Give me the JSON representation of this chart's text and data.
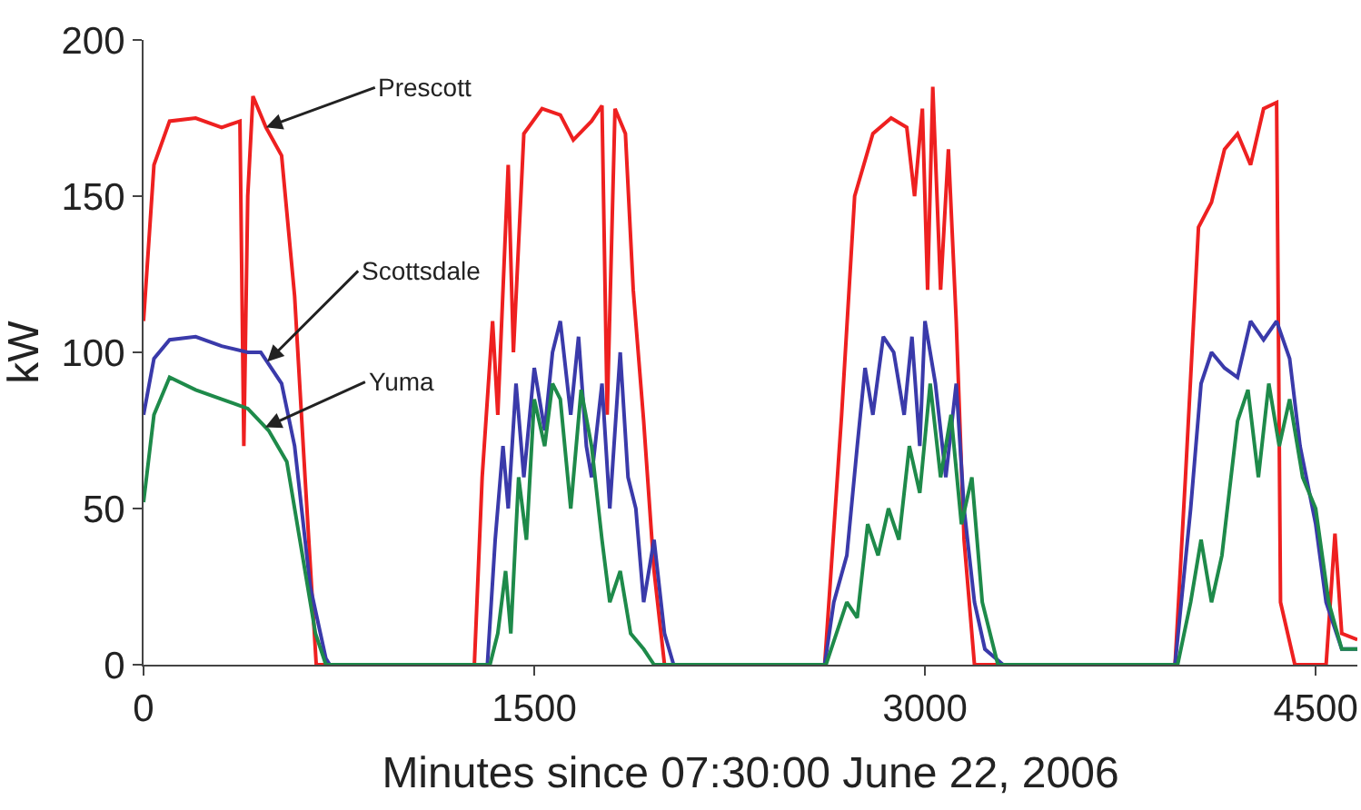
{
  "chart_data": {
    "type": "line",
    "xlabel": "Minutes since 07:30:00 June 22, 2006",
    "ylabel": "kW",
    "xlim": [
      0,
      4660
    ],
    "ylim": [
      0,
      200
    ],
    "xticks": [
      0,
      1500,
      3000,
      4500
    ],
    "yticks": [
      0,
      50,
      100,
      150,
      200
    ],
    "marker": "none",
    "line_style": "solid",
    "series": [
      {
        "color": "#ee2020",
        "x": [
          0,
          40,
          100,
          200,
          300,
          370,
          385,
          400,
          420,
          470,
          530,
          580,
          620,
          663,
          1270,
          1300,
          1340,
          1360,
          1400,
          1420,
          1460,
          1530,
          1600,
          1650,
          1720,
          1760,
          1780,
          1810,
          1850,
          1880,
          1920,
          1960,
          2000,
          2615,
          2680,
          2730,
          2800,
          2870,
          2930,
          2960,
          2990,
          3010,
          3030,
          3060,
          3090,
          3120,
          3150,
          3190,
          3960,
          4000,
          4050,
          4100,
          4150,
          4200,
          4250,
          4300,
          4350,
          4365,
          4420,
          4540,
          4574,
          4600,
          4660
        ],
        "values": [
          110,
          160,
          174,
          175,
          172,
          174,
          70,
          150,
          182,
          172,
          163,
          118,
          60,
          0,
          0,
          60,
          110,
          80,
          160,
          100,
          170,
          178,
          176,
          168,
          174,
          179,
          80,
          178,
          170,
          120,
          78,
          30,
          0,
          0,
          80,
          150,
          170,
          175,
          172,
          150,
          178,
          120,
          185,
          120,
          165,
          110,
          40,
          0,
          0,
          60,
          140,
          148,
          165,
          170,
          160,
          178,
          180,
          20,
          0,
          0,
          42,
          10,
          8
        ]
      },
      {
        "color": "#3a3aaa",
        "x": [
          0,
          40,
          100,
          200,
          300,
          400,
          450,
          530,
          580,
          640,
          700,
          715,
          1320,
          1350,
          1380,
          1400,
          1430,
          1460,
          1500,
          1540,
          1570,
          1600,
          1640,
          1670,
          1700,
          1720,
          1760,
          1790,
          1830,
          1860,
          1890,
          1920,
          1960,
          2000,
          2035,
          2615,
          2650,
          2700,
          2740,
          2770,
          2800,
          2840,
          2880,
          2920,
          2950,
          2980,
          3000,
          3040,
          3080,
          3120,
          3150,
          3190,
          3230,
          3300,
          3960,
          4020,
          4060,
          4100,
          4150,
          4200,
          4250,
          4300,
          4350,
          4400,
          4440,
          4500,
          4540,
          4600,
          4660
        ],
        "values": [
          80,
          98,
          104,
          105,
          102,
          100,
          100,
          90,
          70,
          25,
          2,
          0,
          0,
          40,
          70,
          50,
          90,
          60,
          95,
          75,
          100,
          110,
          80,
          105,
          70,
          60,
          90,
          50,
          100,
          60,
          50,
          20,
          40,
          10,
          0,
          0,
          20,
          35,
          70,
          95,
          80,
          105,
          100,
          80,
          105,
          70,
          110,
          90,
          60,
          90,
          50,
          20,
          5,
          0,
          0,
          50,
          90,
          100,
          95,
          92,
          110,
          104,
          110,
          98,
          70,
          45,
          20,
          5,
          5
        ]
      },
      {
        "color": "#1e8a4a",
        "x": [
          0,
          40,
          100,
          200,
          300,
          400,
          480,
          550,
          600,
          660,
          700,
          1330,
          1360,
          1390,
          1410,
          1440,
          1470,
          1500,
          1540,
          1570,
          1600,
          1640,
          1680,
          1720,
          1760,
          1790,
          1830,
          1870,
          1920,
          1960,
          2620,
          2660,
          2700,
          2740,
          2780,
          2820,
          2860,
          2900,
          2940,
          2980,
          3020,
          3060,
          3100,
          3140,
          3180,
          3220,
          3280,
          3970,
          4020,
          4060,
          4100,
          4140,
          4200,
          4240,
          4280,
          4320,
          4360,
          4400,
          4450,
          4500,
          4550,
          4600,
          4660
        ],
        "values": [
          52,
          80,
          92,
          88,
          85,
          82,
          75,
          65,
          40,
          10,
          0,
          0,
          10,
          30,
          10,
          60,
          40,
          85,
          70,
          90,
          85,
          50,
          88,
          70,
          40,
          20,
          30,
          10,
          5,
          0,
          0,
          10,
          20,
          15,
          45,
          35,
          50,
          40,
          70,
          55,
          90,
          60,
          80,
          45,
          60,
          20,
          0,
          0,
          20,
          40,
          20,
          35,
          78,
          88,
          60,
          90,
          70,
          85,
          60,
          50,
          20,
          5,
          5
        ]
      }
    ],
    "annotations": [
      {
        "text": "Prescott",
        "x": 470,
        "y": 172
      },
      {
        "text": "Scottsdale",
        "x": 475,
        "y": 97
      },
      {
        "text": "Yuma",
        "x": 467,
        "y": 76
      }
    ]
  }
}
